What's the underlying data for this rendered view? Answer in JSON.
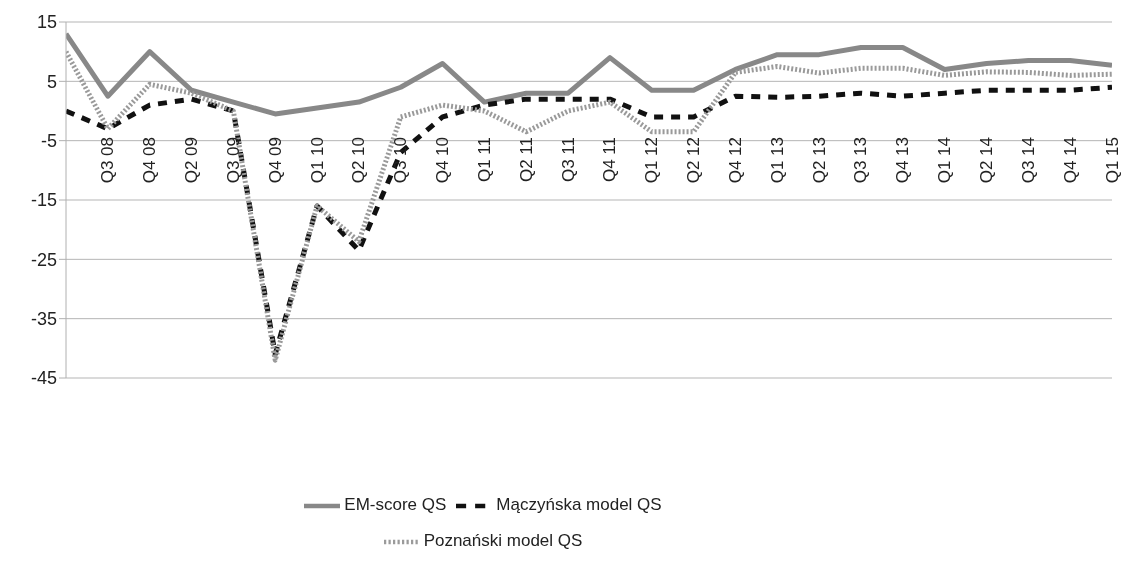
{
  "chart_data": {
    "type": "line",
    "categories": [
      null,
      "Q3 08",
      "Q4 08",
      "Q2 09",
      "Q3 09",
      "Q4 09",
      "Q1 10",
      "Q2 10",
      "Q3 10",
      "Q4 10",
      "Q1 11",
      "Q2 11",
      "Q3 11",
      "Q4 11",
      "Q1 12",
      "Q2 12",
      "Q4 12",
      "Q1 13",
      "Q2 13",
      "Q3 13",
      "Q4 13",
      "Q1 14",
      "Q2 14",
      "Q3 14",
      "Q4 14",
      "Q1 15"
    ],
    "series": [
      {
        "name": "EM-score QS",
        "color": "#888888",
        "line_style": "solid",
        "values": [
          13,
          2.5,
          10,
          3.5,
          1.5,
          -0.5,
          0.5,
          1.5,
          4,
          8,
          1.5,
          3,
          3,
          9,
          3.5,
          3.5,
          7,
          9.5,
          9.5,
          10.7,
          10.7,
          7,
          8,
          8.5,
          8.5,
          7.7
        ]
      },
      {
        "name": "Mączyńska model QS",
        "color": "#111111",
        "line_style": "dashed",
        "values": [
          0,
          -3,
          1,
          2,
          0,
          -41,
          -16,
          -23.5,
          -7,
          -1,
          1,
          2,
          2,
          2,
          -1,
          -1,
          2.5,
          2.3,
          2.5,
          3,
          2.5,
          3,
          3.5,
          3.5,
          3.5,
          4
        ]
      },
      {
        "name": "Poznański model QS",
        "color": "#9a9a9a",
        "line_style": "dotted",
        "values": [
          10,
          -3,
          4.5,
          3,
          0,
          -42,
          -16,
          -22,
          -1,
          1,
          0,
          -3.5,
          0,
          1.5,
          -3.5,
          -3.5,
          6.5,
          7.5,
          6.4,
          7.2,
          7.2,
          6,
          6.6,
          6.5,
          6,
          6.2
        ]
      }
    ],
    "ylim": [
      -45,
      15
    ],
    "yticks": [
      -45,
      -35,
      -25,
      -15,
      -5,
      5,
      15
    ],
    "grid": "y",
    "legend": "bottom",
    "marker": "none"
  }
}
